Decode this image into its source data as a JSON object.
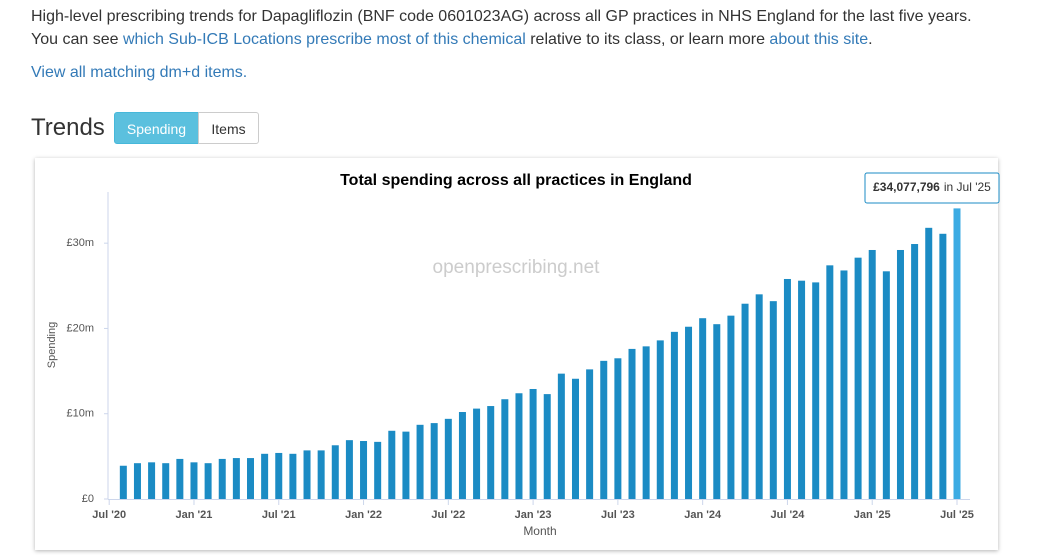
{
  "intro": {
    "line1": "High-level prescribing trends for Dapagliflozin (BNF code 0601023AG) across all GP practices in NHS England for the last five years.",
    "line2_start": "You can see ",
    "link1": "which Sub-ICB Locations prescribe most of this chemical",
    "line2_mid": " relative to its class, or learn more ",
    "link2": "about this site",
    "line2_end": "."
  },
  "dmd_link": "View all matching dm+d items.",
  "trends": {
    "heading": "Trends",
    "tabs": [
      "Spending",
      "Items"
    ]
  },
  "chart_data": {
    "type": "bar",
    "title": "Total spending across all practices in England",
    "ylabel": "Spending",
    "xlabel": "Month",
    "watermark": "openprescribing.net",
    "color": "#1b8bc4",
    "highlight_color": "#3cabe3",
    "categories": [
      "Jul '20",
      null,
      null,
      null,
      null,
      null,
      "Jan '21",
      null,
      null,
      null,
      null,
      null,
      "Jul '21",
      null,
      null,
      null,
      null,
      null,
      "Jan '22",
      null,
      null,
      null,
      null,
      null,
      "Jul '22",
      null,
      null,
      null,
      null,
      null,
      "Jan '23",
      null,
      null,
      null,
      null,
      null,
      "Jul '23",
      null,
      null,
      null,
      null,
      null,
      "Jan '24",
      null,
      null,
      null,
      null,
      null,
      "Jul '24",
      null,
      null,
      null,
      null,
      null,
      "Jan '25",
      null,
      null,
      null,
      null,
      null,
      "Jul '25"
    ],
    "values": [
      null,
      3.9,
      4.2,
      4.3,
      4.2,
      4.7,
      4.3,
      4.2,
      4.7,
      4.8,
      4.8,
      5.3,
      5.4,
      5.3,
      5.7,
      5.7,
      6.3,
      6.9,
      6.8,
      6.7,
      8.0,
      7.9,
      8.7,
      8.9,
      9.4,
      10.2,
      10.6,
      10.9,
      11.7,
      12.4,
      12.9,
      12.3,
      14.7,
      14.1,
      15.2,
      16.2,
      16.5,
      17.6,
      17.9,
      18.6,
      19.6,
      20.2,
      21.2,
      20.5,
      21.5,
      22.9,
      24.0,
      23.2,
      25.8,
      25.6,
      25.4,
      27.4,
      26.8,
      28.3,
      29.2,
      26.7,
      29.2,
      29.9,
      31.8,
      31.1,
      34.077796
    ],
    "ylim": [
      0,
      36
    ],
    "yticks": [
      {
        "value": 0,
        "label": "£0"
      },
      {
        "value": 10,
        "label": "£10m"
      },
      {
        "value": 20,
        "label": "£20m"
      },
      {
        "value": 30,
        "label": "£30m"
      }
    ],
    "grid": false,
    "tooltip": {
      "value_label": "£34,077,796",
      "suffix": "in Jul '25"
    }
  }
}
